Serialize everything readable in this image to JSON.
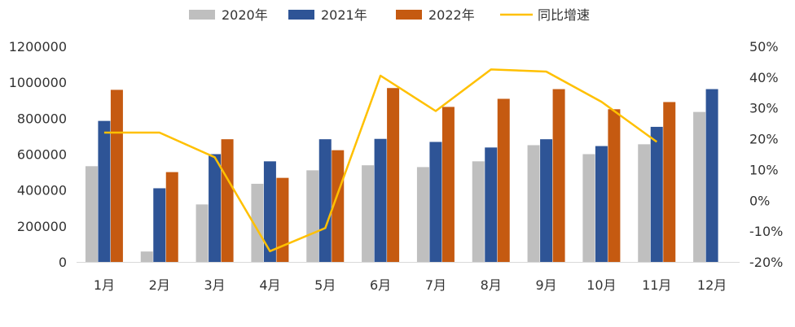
{
  "chart_data": {
    "type": "bar",
    "categories": [
      "1月",
      "2月",
      "3月",
      "4月",
      "5月",
      "6月",
      "7月",
      "8月",
      "9月",
      "10月",
      "11月",
      "12月"
    ],
    "series": [
      {
        "name": "2020年",
        "kind": "bar",
        "axis": "left",
        "color": "#BFBFBF",
        "values": [
          533000,
          58000,
          320000,
          435000,
          510000,
          538000,
          528000,
          560000,
          650000,
          600000,
          655000,
          835000
        ]
      },
      {
        "name": "2021年",
        "kind": "bar",
        "axis": "left",
        "color": "#2E5496",
        "values": [
          785000,
          410000,
          600000,
          560000,
          683000,
          685000,
          668000,
          637000,
          683000,
          645000,
          752000,
          962000
        ]
      },
      {
        "name": "2022年",
        "kind": "bar",
        "axis": "left",
        "color": "#C55A11",
        "values": [
          958000,
          500000,
          683000,
          468000,
          622000,
          968000,
          863000,
          908000,
          962000,
          850000,
          890000,
          null
        ]
      },
      {
        "name": "同比增速",
        "kind": "line",
        "axis": "right",
        "color": "#FFC000",
        "values": [
          22,
          22,
          14,
          -16.5,
          -9,
          40.5,
          29,
          42.5,
          41.8,
          32,
          19,
          null
        ]
      }
    ],
    "y_left": {
      "min": 0,
      "max": 1200000,
      "ticks": [
        "0",
        "200000",
        "400000",
        "600000",
        "800000",
        "1000000",
        "1200000"
      ]
    },
    "y_right": {
      "min": -20,
      "max": 50,
      "ticks": [
        "-20%",
        "-10%",
        "0%",
        "10%",
        "20%",
        "30%",
        "40%",
        "50%"
      ]
    },
    "legend_position": "top",
    "grid": false
  }
}
